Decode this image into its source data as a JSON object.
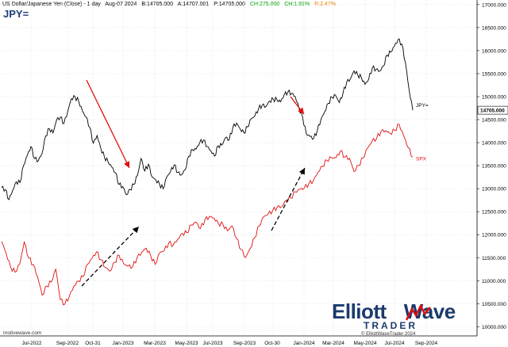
{
  "header": {
    "symbol_title": "US Dollar/Japanese Yen (Close) - 1 day",
    "date": "Aug-07 2024",
    "bid": "B:14705.000",
    "ask": "A:14707.001",
    "price": "P:14705.000",
    "change": "CH:275.000",
    "change_pct": "CH:1.91%",
    "range_pct": "R:2.47%",
    "ticker": "JPY="
  },
  "colors": {
    "jpy": "#000000",
    "spx": "#e01010",
    "arrow_red": "#e01010",
    "arrow_black": "#000000",
    "ticker": "#1f3f7a",
    "change": "#00a000",
    "range": "#e08000",
    "grid": "#dddddd"
  },
  "chart_data": {
    "type": "line",
    "y_axis": {
      "ylim": [
        9800,
        17100
      ],
      "ticks": [
        "10000.000",
        "10500.000",
        "11000.000",
        "11500.000",
        "12000.000",
        "12500.000",
        "13000.000",
        "13500.000",
        "14000.000",
        "14500.000",
        "15000.000",
        "15500.000",
        "16000.000",
        "16500.000",
        "17000.000"
      ],
      "tick_values": [
        10000,
        10500,
        11000,
        11500,
        12000,
        12500,
        13000,
        13500,
        14000,
        14500,
        15000,
        15500,
        16000,
        16500,
        17000
      ]
    },
    "x_axis": {
      "ticks": [
        "Jul-2022",
        "Sep-2022",
        "Oct-31",
        "Jan-2023",
        "Mar-2023",
        "May-2023",
        "Jul-2023",
        "Sep-2023",
        "Oct-30",
        "Jan-2024",
        "Mar-2024",
        "May-2024",
        "Jul-2024",
        "Sep-2024"
      ]
    },
    "price_label": "14705.000",
    "price_value": 14705,
    "series": [
      {
        "name": "JPY=",
        "values": [
          13000,
          12950,
          12800,
          12950,
          13200,
          13100,
          13500,
          13700,
          13900,
          13700,
          13600,
          13800,
          14100,
          14300,
          14200,
          14500,
          14600,
          14400,
          14700,
          14900,
          15000,
          14900,
          14700,
          14600,
          14300,
          14000,
          14100,
          13900,
          13700,
          13600,
          13500,
          13300,
          13100,
          13000,
          12900,
          13000,
          13100,
          13300,
          13600,
          13400,
          13500,
          13300,
          13200,
          13100,
          13000,
          13200,
          13400,
          13500,
          13400,
          13300,
          13400,
          13700,
          13800,
          13900,
          14000,
          14100,
          13900,
          13800,
          13700,
          13900,
          14000,
          14100,
          14100,
          14300,
          14400,
          14300,
          14200,
          14400,
          14500,
          14600,
          14700,
          14800,
          14800,
          14900,
          15000,
          14900,
          14900,
          15000,
          15100,
          15100,
          15000,
          14800,
          14500,
          14200,
          14100,
          14100,
          14300,
          14500,
          14700,
          14800,
          15000,
          15000,
          14900,
          15100,
          15300,
          15400,
          15500,
          15500,
          15400,
          15300,
          15400,
          15600,
          15600,
          15500,
          15700,
          15900,
          16000,
          16100,
          16200,
          16150,
          15700,
          15200,
          14705
        ]
      },
      {
        "name": "SPX",
        "values": [
          11800,
          11600,
          11300,
          11200,
          11400,
          11800,
          11500,
          11300,
          11100,
          10700,
          10900,
          11000,
          11200,
          10600,
          10450,
          10700,
          10900,
          11000,
          11100,
          11300,
          11500,
          11600,
          11500,
          11300,
          11200,
          11400,
          11500,
          11400,
          11300,
          11350,
          11500,
          11600,
          11700,
          11500,
          11400,
          11600,
          11700,
          11800,
          11750,
          11900,
          12000,
          12100,
          12200,
          12300,
          12100,
          12300,
          12400,
          12350,
          12300,
          12200,
          12100,
          12150,
          11900,
          11700,
          11500,
          11750,
          11900,
          12200,
          12350,
          12450,
          12550,
          12600,
          12650,
          12700,
          12800,
          12900,
          13000,
          13050,
          13100,
          13200,
          13300,
          13500,
          13600,
          13700,
          13700,
          13800,
          13700,
          13600,
          13400,
          13500,
          13700,
          13900,
          14000,
          14100,
          14200,
          14300,
          14200,
          14300,
          14400,
          14100,
          13900,
          13650
        ]
      }
    ],
    "annotations": [
      {
        "type": "arrow",
        "color": "red"
      },
      {
        "type": "arrow",
        "color": "red"
      },
      {
        "type": "arrow",
        "color": "black",
        "style": "dashed"
      },
      {
        "type": "arrow",
        "color": "black",
        "style": "dashed"
      }
    ],
    "series_labels": [
      "JPY=",
      "SPX"
    ],
    "grid": true
  },
  "footer": {
    "source": "motivewave.com",
    "copyright": "© ElliottWaveTrader 2024",
    "logo_line1": "Elliott",
    "logo_line1b": "Wave",
    "logo_line2": "TRADER"
  }
}
